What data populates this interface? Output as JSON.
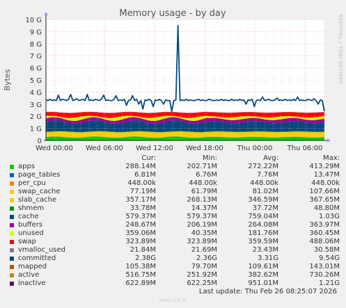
{
  "chart_data": {
    "type": "area",
    "title": "Memory usage - by day",
    "ylabel": "Bytes",
    "side_label": "RRDTOOL / TOBI OETIKER",
    "yticks": [
      "0",
      "1 G",
      "2 G",
      "3 G",
      "4 G",
      "5 G",
      "6 G",
      "7 G",
      "8 G",
      "9 G",
      "10 G"
    ],
    "ylim": [
      0,
      10
    ],
    "xticks": [
      "Wed 00:00",
      "Wed 06:00",
      "Wed 12:00",
      "Wed 18:00",
      "Thu 00:00",
      "Thu 06:00"
    ],
    "grid": true,
    "columns": [
      "Cur:",
      "Min:",
      "Avg:",
      "Max:"
    ],
    "series": [
      {
        "name": "apps",
        "color": "#00cc00",
        "cur": "288.14M",
        "min": "202.71M",
        "avg": "272.22M",
        "max": "413.29M"
      },
      {
        "name": "page_tables",
        "color": "#0066b3",
        "cur": "6.81M",
        "min": "6.76M",
        "avg": "7.76M",
        "max": "13.47M"
      },
      {
        "name": "per_cpu",
        "color": "#ff8000",
        "cur": "448.00k",
        "min": "448.00k",
        "avg": "448.00k",
        "max": "448.00k"
      },
      {
        "name": "swap_cache",
        "color": "#ffcc00",
        "cur": "77.19M",
        "min": "61.79M",
        "avg": "81.02M",
        "max": "107.66M"
      },
      {
        "name": "slab_cache",
        "color": "#ffcc00",
        "cur": "357.17M",
        "min": "268.13M",
        "avg": "346.59M",
        "max": "367.65M"
      },
      {
        "name": "shmem",
        "color": "#008f00",
        "cur": "33.78M",
        "min": "14.37M",
        "avg": "37.72M",
        "max": "48.80M"
      },
      {
        "name": "cache",
        "color": "#00487d",
        "cur": "579.37M",
        "min": "579.37M",
        "avg": "759.04M",
        "max": "1.03G"
      },
      {
        "name": "buffers",
        "color": "#990099",
        "cur": "248.67M",
        "min": "206.19M",
        "avg": "264.08M",
        "max": "363.97M"
      },
      {
        "name": "unused",
        "color": "#ccff00",
        "cur": "359.06M",
        "min": "40.35M",
        "avg": "181.76M",
        "max": "360.45M"
      },
      {
        "name": "swap",
        "color": "#ff0000",
        "cur": "323.89M",
        "min": "323.89M",
        "avg": "359.59M",
        "max": "488.06M"
      },
      {
        "name": "vmalloc_used",
        "color": "#808080",
        "cur": "21.84M",
        "min": "21.69M",
        "avg": "23.43M",
        "max": "30.58M"
      },
      {
        "name": "committed",
        "color": "#004a7f",
        "cur": "2.38G",
        "min": "2.36G",
        "avg": "3.31G",
        "max": "9.54G"
      },
      {
        "name": "mapped",
        "color": "#b35a00",
        "cur": "105.38M",
        "min": "79.70M",
        "avg": "109.61M",
        "max": "143.01M"
      },
      {
        "name": "active",
        "color": "#b38f00",
        "cur": "516.75M",
        "min": "251.92M",
        "avg": "382.62M",
        "max": "730.26M"
      },
      {
        "name": "inactive",
        "color": "#6b006b",
        "cur": "622.89M",
        "min": "622.25M",
        "avg": "951.01M",
        "max": "1.21G"
      }
    ],
    "stack_gb": {
      "apps": 0.27,
      "page_tables": 0.01,
      "swap_cache": 0.08,
      "slab_cache": 0.35,
      "shmem": 0.04,
      "cache": 0.76,
      "buffers": 0.26,
      "unused": 0.18,
      "swap": 0.36,
      "vmalloc_used": 0.02
    },
    "committed_gb": [
      3.35,
      3.3,
      3.4,
      3.3,
      3.35,
      3.3,
      3.75,
      3.3,
      3.4,
      3.35,
      3.3,
      3.4,
      3.8,
      3.3,
      3.35,
      3.45,
      3.3,
      3.35,
      3.4,
      3.3,
      3.8,
      3.3,
      3.35,
      3.3,
      3.4,
      3.35,
      3.3,
      3.45,
      3.75,
      3.3,
      3.35,
      3.3,
      3.3,
      3.4,
      3.7,
      3.3,
      3.35,
      3.3,
      3.4,
      2.9,
      3.3,
      3.35,
      3.7,
      3.3,
      3.4,
      3.0,
      3.3,
      2.6,
      3.35,
      3.3,
      3.4,
      3.3,
      2.8,
      3.35,
      3.3,
      3.4,
      3.3,
      3.0,
      3.35,
      3.3,
      3.3,
      2.4,
      3.3,
      3.35,
      9.5,
      3.3,
      3.35,
      3.3,
      3.4,
      3.3,
      3.35,
      3.3,
      3.3,
      3.35,
      3.4,
      3.3,
      3.35,
      3.3,
      3.3,
      3.4,
      3.35,
      3.3,
      3.3,
      3.35,
      3.3,
      3.4,
      3.3,
      3.35,
      3.3,
      3.3,
      3.4,
      3.3,
      3.35,
      3.3,
      3.4,
      3.3,
      3.35,
      3.0,
      3.35,
      3.3,
      3.4,
      2.8,
      3.3,
      3.35,
      3.3,
      3.6,
      3.3,
      3.35,
      3.4,
      3.3,
      3.3,
      3.35,
      3.5,
      3.3,
      3.35,
      3.3,
      3.4,
      3.3,
      3.35,
      3.3,
      3.4,
      3.3,
      3.6,
      3.3,
      3.35,
      3.3,
      3.3,
      3.4,
      3.35,
      3.3,
      3.45,
      3.3,
      3.0,
      3.35,
      3.3,
      2.4
    ]
  },
  "footer": {
    "last_update": "Last update: Thu Feb 26 08:25:07 2026",
    "munin": "Munin 2.0.76"
  }
}
